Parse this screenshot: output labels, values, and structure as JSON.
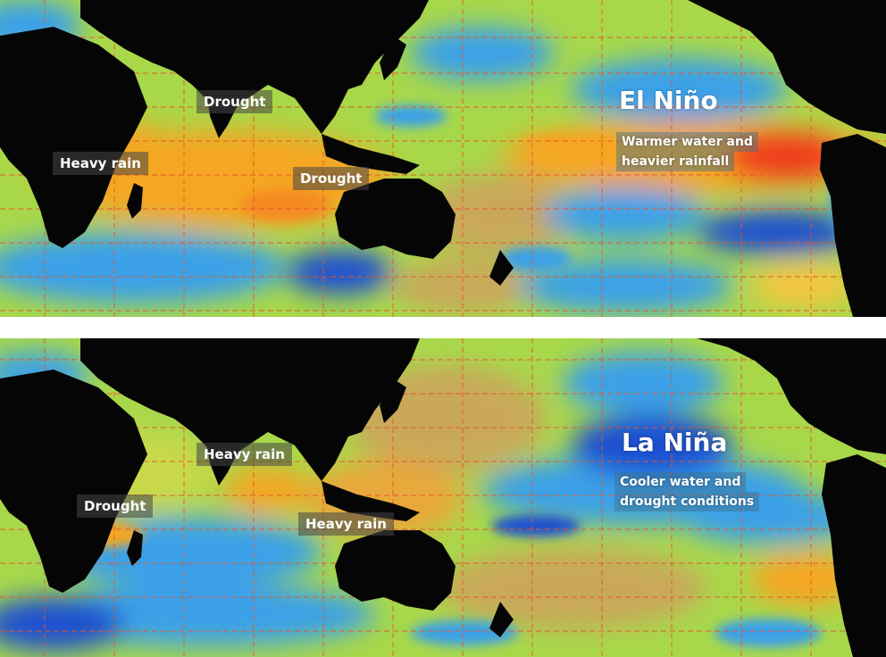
{
  "colors": {
    "land": "#050505",
    "ocean_base": "#a8d84a",
    "warm": "#f5a623",
    "hot": "#ee3a1c",
    "cool": "#3aa0e8",
    "cold": "#1d4fd0",
    "gridline": "#e8552a",
    "separator": "#ffffff"
  },
  "el_nino": {
    "title": "El Niño",
    "line1": "Warmer water and",
    "line2": "heavier rainfall",
    "labels": {
      "heavy_rain_africa": "Heavy rain",
      "drought_india": "Drought",
      "drought_australia": "Drought"
    }
  },
  "la_nina": {
    "title": "La Niña",
    "line1": "Cooler water and",
    "line2": "drought conditions",
    "labels": {
      "drought_africa": "Drought",
      "heavy_rain_india": "Heavy rain",
      "heavy_rain_australia": "Heavy rain"
    }
  }
}
